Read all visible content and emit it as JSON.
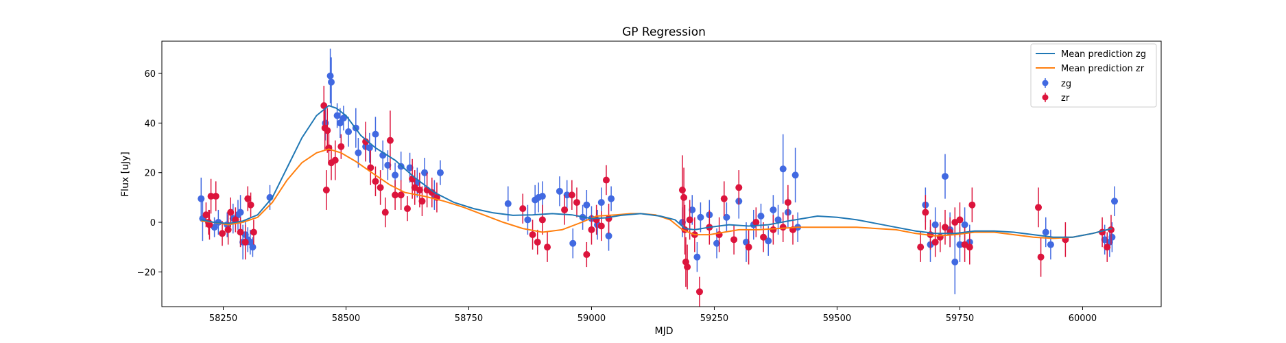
{
  "chart_data": {
    "type": "scatter",
    "title": "GP Regression",
    "xlabel": "MJD",
    "ylabel": "Flux [uJy]",
    "xlim": [
      58125,
      60160
    ],
    "ylim": [
      -34,
      73
    ],
    "xticks": [
      58250,
      58500,
      58750,
      59000,
      59250,
      59500,
      59750,
      60000
    ],
    "yticks": [
      -20,
      0,
      20,
      40,
      60
    ],
    "grid": false,
    "legend_position": "top-right",
    "legend": {
      "mean_zg": "Mean prediction zg",
      "mean_zr": "Mean prediction zr",
      "zg": "zg",
      "zr": "zr"
    },
    "colors": {
      "mean_zg": "#1f77b4",
      "mean_zr": "#ff7f0e",
      "zg": "#4169e1",
      "zr": "#dc143c"
    },
    "series": [
      {
        "name": "Mean prediction zg",
        "kind": "line",
        "x": [
          58205,
          58230,
          58260,
          58290,
          58320,
          58350,
          58380,
          58410,
          58440,
          58465,
          58480,
          58500,
          58530,
          58560,
          58600,
          58640,
          58680,
          58720,
          58760,
          58800,
          58840,
          58880,
          58920,
          58960,
          59000,
          59030,
          59060,
          59100,
          59140,
          59170,
          59190,
          59210,
          59240,
          59280,
          59320,
          59360,
          59400,
          59430,
          59460,
          59500,
          59540,
          59580,
          59620,
          59660,
          59700,
          59740,
          59780,
          59820,
          59860,
          59900,
          59940,
          59980,
          60020,
          60060
        ],
        "y": [
          1,
          0,
          -0.5,
          0.5,
          3,
          10,
          22,
          34,
          43,
          47,
          46,
          43,
          35,
          30,
          25,
          18,
          12,
          8,
          5.5,
          3.8,
          2.8,
          3,
          3.5,
          3,
          1.5,
          1.8,
          2.8,
          3.5,
          2.5,
          1,
          -2.5,
          -3,
          -2,
          -1,
          -1.5,
          -1,
          0.5,
          1.5,
          2.5,
          2,
          1,
          -0.5,
          -2,
          -3.5,
          -4.5,
          -4.5,
          -3.5,
          -3.5,
          -4,
          -5,
          -6,
          -6,
          -4.5,
          -2.5
        ]
      },
      {
        "name": "Mean prediction zr",
        "kind": "line",
        "x": [
          58205,
          58230,
          58260,
          58290,
          58320,
          58350,
          58380,
          58410,
          58440,
          58465,
          58490,
          58520,
          58560,
          58590,
          58620,
          58660,
          58700,
          58740,
          58780,
          58820,
          58860,
          58900,
          58940,
          58980,
          59010,
          59050,
          59080,
          59100,
          59130,
          59160,
          59185,
          59210,
          59240,
          59270,
          59300,
          59340,
          59380,
          59420,
          59460,
          59500,
          59540,
          59580,
          59620,
          59660,
          59700,
          59740,
          59780,
          59820,
          59860,
          59900,
          59940,
          59980,
          60020,
          60060
        ],
        "y": [
          0.5,
          0,
          -1,
          0,
          2,
          8,
          17,
          24,
          28,
          29.5,
          28,
          24.5,
          19,
          15,
          12,
          10.5,
          8.5,
          6,
          3,
          0,
          -2.5,
          -4,
          -3,
          0,
          2.5,
          3,
          3.5,
          3.5,
          3,
          1,
          -3,
          -5,
          -5,
          -4,
          -3,
          -3,
          -2.5,
          -2,
          -2,
          -2,
          -2,
          -2.5,
          -3,
          -4.5,
          -5.5,
          -5,
          -4,
          -4,
          -5,
          -6,
          -6.5,
          -6,
          -4.5,
          -2.5
        ]
      },
      {
        "name": "zg",
        "kind": "errorbar",
        "x": [
          58205,
          58208,
          58232,
          58240,
          58258,
          58270,
          58280,
          58285,
          58290,
          58295,
          58300,
          58305,
          58310,
          58345,
          58458,
          58468,
          58470,
          58482,
          58488,
          58495,
          58505,
          58520,
          58525,
          58540,
          58548,
          58560,
          58575,
          58585,
          58600,
          58612,
          58630,
          58645,
          58660,
          58680,
          58692,
          58830,
          58870,
          58885,
          58892,
          58900,
          58935,
          58950,
          58962,
          58982,
          58990,
          59000,
          59012,
          59020,
          59035,
          59040,
          59185,
          59205,
          59215,
          59222,
          59240,
          59255,
          59275,
          59300,
          59315,
          59330,
          59345,
          59360,
          59370,
          59380,
          59390,
          59400,
          59415,
          59420,
          59680,
          59690,
          59700,
          59720,
          59730,
          59740,
          59750,
          59760,
          59770,
          59925,
          59935,
          60045,
          60055,
          60060,
          60065
        ],
        "y": [
          9.5,
          1.5,
          -2,
          0,
          -1,
          1.5,
          3,
          4,
          -8,
          -5,
          -7,
          -8,
          -10,
          10,
          40,
          59,
          56.5,
          43,
          40,
          42,
          36.5,
          38,
          28,
          30.5,
          30,
          35.5,
          27,
          23,
          19,
          22.5,
          22,
          16,
          20,
          11,
          20,
          7.5,
          1,
          9,
          10,
          10.5,
          12.5,
          11,
          -8.5,
          2,
          7,
          1.5,
          -1,
          8,
          -5.5,
          9.5,
          0,
          5,
          -14,
          2,
          3,
          -8.5,
          2,
          8.5,
          -8,
          -1,
          2.5,
          -7.5,
          5,
          1,
          21.5,
          4,
          19,
          -2,
          7,
          -9,
          -1,
          18.5,
          -3,
          -16,
          -9,
          -1,
          -8,
          -4,
          -9,
          -7,
          -8,
          -6,
          8.5
        ],
        "yerr": [
          8.5,
          9,
          4,
          5,
          5,
          6,
          6,
          7,
          7,
          6,
          5,
          5,
          4,
          5,
          7,
          11,
          10,
          5,
          6,
          5,
          6,
          8,
          6,
          6,
          6,
          7,
          6,
          6,
          5,
          6,
          6,
          6,
          6,
          6,
          5,
          7,
          6,
          6,
          6,
          6,
          6,
          6,
          6,
          5,
          6,
          5,
          6,
          6,
          6,
          5,
          6,
          6,
          6,
          6,
          6,
          6,
          6,
          7,
          8,
          6,
          5,
          6,
          6,
          6,
          14,
          6,
          11,
          6,
          7,
          7,
          7,
          9,
          7,
          13,
          7,
          7,
          7,
          6,
          6,
          6,
          6,
          6,
          6
        ]
      },
      {
        "name": "zr",
        "kind": "errorbar",
        "x": [
          58215,
          58220,
          58222,
          58225,
          58235,
          58248,
          58260,
          58265,
          58275,
          58285,
          58295,
          58300,
          58306,
          58312,
          58455,
          58457,
          58460,
          58462,
          58465,
          58470,
          58478,
          58490,
          58540,
          58550,
          58560,
          58570,
          58580,
          58590,
          58600,
          58612,
          58625,
          58635,
          58640,
          58650,
          58655,
          58665,
          58675,
          58685,
          58860,
          58880,
          58890,
          58900,
          58910,
          58945,
          58960,
          58970,
          58990,
          59000,
          59010,
          59020,
          59030,
          59035,
          59185,
          59188,
          59190,
          59192,
          59195,
          59200,
          59210,
          59220,
          59240,
          59260,
          59270,
          59290,
          59300,
          59320,
          59335,
          59350,
          59370,
          59390,
          59400,
          59410,
          59670,
          59680,
          59690,
          59700,
          59710,
          59720,
          59730,
          59740,
          59750,
          59760,
          59770,
          59775,
          59910,
          59915,
          59965,
          60040,
          60050,
          60058
        ],
        "y": [
          3,
          0,
          -1,
          10.5,
          10.5,
          -4.5,
          -3,
          4,
          1,
          -4,
          -8,
          9.5,
          7,
          -4,
          47,
          38,
          13,
          37,
          30,
          24,
          25,
          30.5,
          32.5,
          22,
          16.5,
          14,
          4,
          33,
          11,
          11,
          5.5,
          17.5,
          14,
          13,
          8.5,
          13,
          12,
          10,
          5.5,
          -5,
          -8,
          1,
          -10,
          5,
          11,
          8,
          -13,
          -3,
          1,
          -1.5,
          17,
          1.5,
          13,
          10,
          -3,
          -16,
          -18,
          1,
          -5,
          -28,
          -2,
          -5,
          9.5,
          -7,
          14,
          -10,
          0,
          -6,
          -3,
          -2,
          8,
          -3,
          -10,
          4,
          -5,
          -8,
          -6,
          -2,
          -4,
          0,
          1,
          -9,
          -10,
          7,
          6,
          -14,
          -7,
          -4,
          -10,
          -3
        ],
        "yerr": [
          5,
          5,
          6,
          7,
          6,
          5,
          6,
          6,
          5,
          6,
          7,
          5,
          5,
          5,
          8,
          9,
          8,
          9,
          7,
          7,
          8,
          5,
          8,
          7,
          6,
          7,
          6,
          12,
          6,
          6,
          5,
          8,
          7,
          7,
          6,
          7,
          6,
          6,
          6,
          6,
          5,
          6,
          6,
          6,
          6,
          6,
          5,
          6,
          6,
          6,
          6,
          6,
          14,
          12,
          10,
          10,
          9,
          8,
          7,
          6,
          7,
          7,
          7,
          6,
          7,
          7,
          6,
          6,
          6,
          6,
          7,
          6,
          6,
          7,
          6,
          6,
          6,
          7,
          6,
          6,
          7,
          7,
          7,
          7,
          8,
          8,
          7,
          6,
          6,
          6
        ]
      }
    ]
  }
}
